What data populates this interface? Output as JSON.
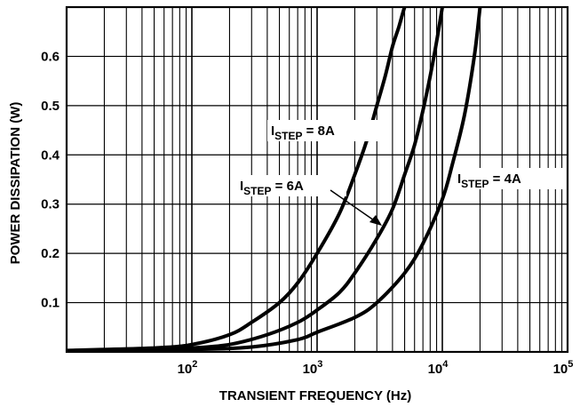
{
  "chart_data": {
    "type": "line",
    "title": "",
    "xlabel": "TRANSIENT FREQUENCY (Hz)",
    "ylabel": "POWER DISSIPATION (W)",
    "x_scale": "log",
    "xlim": [
      10,
      100000
    ],
    "ylim": [
      0,
      0.7
    ],
    "grid": true,
    "x_ticks": [
      {
        "value": 100,
        "base": "10",
        "exp": "2"
      },
      {
        "value": 1000,
        "base": "10",
        "exp": "3"
      },
      {
        "value": 10000,
        "base": "10",
        "exp": "4"
      },
      {
        "value": 100000,
        "base": "10",
        "exp": "5"
      }
    ],
    "y_ticks": [
      {
        "value": 0.1,
        "label": "0.1"
      },
      {
        "value": 0.2,
        "label": "0.2"
      },
      {
        "value": 0.3,
        "label": "0.3"
      },
      {
        "value": 0.4,
        "label": "0.4"
      },
      {
        "value": 0.5,
        "label": "0.5"
      },
      {
        "value": 0.6,
        "label": "0.6"
      }
    ],
    "series": [
      {
        "label_main": "I",
        "label_sub": "STEP",
        "label_rest": " = 8A",
        "x": [
          10,
          50,
          100,
          200,
          300,
          500,
          700,
          1000,
          1500,
          2000,
          2500,
          3000,
          3500,
          4000,
          4500,
          5000,
          5500
        ],
        "y": [
          0.003,
          0.008,
          0.015,
          0.035,
          0.06,
          0.1,
          0.14,
          0.2,
          0.28,
          0.36,
          0.43,
          0.5,
          0.56,
          0.62,
          0.66,
          0.7,
          0.72
        ]
      },
      {
        "label_main": "I",
        "label_sub": "STEP",
        "label_rest": " = 6A",
        "x": [
          10,
          50,
          100,
          200,
          400,
          700,
          1000,
          1500,
          2000,
          3000,
          4000,
          5000,
          6000,
          7000,
          8000,
          9000,
          10000
        ],
        "y": [
          0.002,
          0.005,
          0.008,
          0.015,
          0.035,
          0.06,
          0.085,
          0.12,
          0.16,
          0.23,
          0.29,
          0.36,
          0.42,
          0.49,
          0.56,
          0.63,
          0.7
        ]
      },
      {
        "label_main": "I",
        "label_sub": "STEP",
        "label_rest": " = 4A",
        "x": [
          10,
          100,
          300,
          700,
          1000,
          2000,
          3000,
          5000,
          7000,
          10000,
          12000,
          15000,
          18000,
          20000
        ],
        "y": [
          0.002,
          0.005,
          0.01,
          0.025,
          0.04,
          0.07,
          0.1,
          0.16,
          0.22,
          0.31,
          0.38,
          0.48,
          0.6,
          0.7
        ]
      }
    ]
  }
}
